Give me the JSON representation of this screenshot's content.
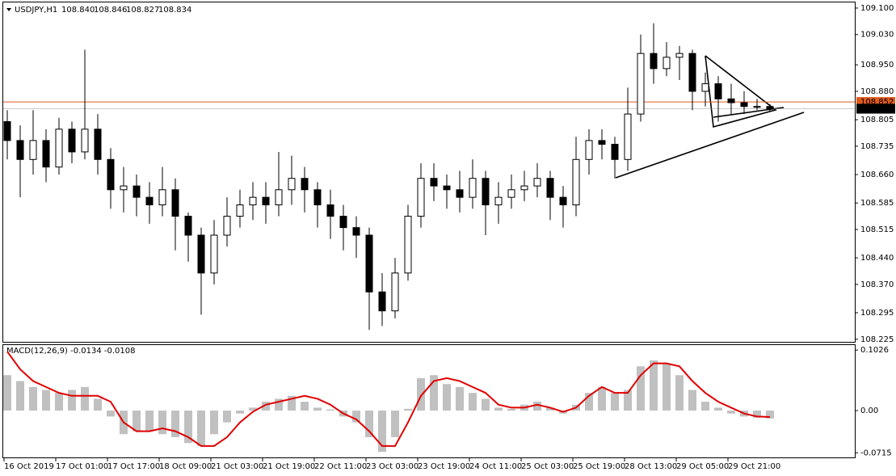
{
  "chart_data": {
    "type": "candlestick",
    "title": "USDJPY,H1",
    "header_values": [
      "108.840",
      "108.846",
      "108.827",
      "108.834"
    ],
    "categories": [
      "16 Oct 2019",
      null,
      null,
      null,
      "17 Oct 01:00",
      null,
      null,
      null,
      "17 Oct 17:00",
      null,
      null,
      null,
      "18 Oct 09:00",
      null,
      null,
      null,
      "21 Oct 03:00",
      null,
      null,
      null,
      "21 Oct 19:00",
      null,
      null,
      null,
      "22 Oct 11:00",
      null,
      null,
      null,
      "23 Oct 03:00",
      null,
      null,
      null,
      "23 Oct 19:00",
      null,
      null,
      null,
      "24 Oct 11:00",
      null,
      null,
      null,
      "25 Oct 03:00",
      null,
      null,
      null,
      "25 Oct 19:00",
      null,
      null,
      null,
      "28 Oct 13:00",
      null,
      null,
      null,
      "29 Oct 05:00",
      null,
      null,
      null,
      "29 Oct 21:00",
      null,
      null,
      null
    ],
    "open": [
      108.8,
      108.75,
      108.7,
      108.75,
      108.68,
      108.78,
      108.72,
      108.78,
      108.7,
      108.62,
      108.63,
      108.6,
      108.58,
      108.62,
      108.55,
      108.5,
      108.4,
      108.5,
      108.55,
      108.58,
      108.6,
      108.58,
      108.62,
      108.65,
      108.62,
      108.58,
      108.55,
      108.52,
      108.5,
      108.35,
      108.3,
      108.4,
      108.55,
      108.65,
      108.63,
      108.62,
      108.6,
      108.65,
      108.58,
      108.6,
      108.62,
      108.63,
      108.65,
      108.6,
      108.58,
      108.7,
      108.75,
      108.74,
      108.7,
      108.82,
      108.98,
      108.94,
      108.97,
      108.98,
      108.88,
      108.9,
      108.86,
      108.85,
      108.84,
      108.84
    ],
    "high": [
      108.83,
      108.79,
      108.83,
      108.78,
      108.81,
      108.8,
      108.99,
      108.82,
      108.73,
      108.68,
      108.66,
      108.64,
      108.68,
      108.65,
      108.56,
      108.52,
      108.54,
      108.6,
      108.62,
      108.64,
      108.64,
      108.72,
      108.71,
      108.68,
      108.64,
      108.62,
      108.58,
      108.55,
      108.52,
      108.4,
      108.44,
      108.58,
      108.69,
      108.69,
      108.66,
      108.67,
      108.7,
      108.67,
      108.64,
      108.66,
      108.67,
      108.69,
      108.67,
      108.63,
      108.76,
      108.78,
      108.78,
      108.76,
      108.89,
      109.03,
      109.06,
      109.01,
      109.0,
      108.99,
      108.93,
      108.92,
      108.9,
      108.88,
      108.86,
      108.846
    ],
    "low": [
      108.7,
      108.6,
      108.66,
      108.64,
      108.66,
      108.69,
      108.7,
      108.66,
      108.57,
      108.56,
      108.55,
      108.53,
      108.55,
      108.46,
      108.43,
      108.29,
      108.37,
      108.47,
      108.52,
      108.54,
      108.53,
      108.55,
      108.58,
      108.56,
      108.52,
      108.49,
      108.46,
      108.44,
      108.25,
      108.26,
      108.28,
      108.38,
      108.52,
      108.59,
      108.57,
      108.56,
      108.57,
      108.5,
      108.53,
      108.57,
      108.59,
      108.6,
      108.54,
      108.52,
      108.55,
      108.66,
      108.7,
      108.65,
      108.67,
      108.8,
      108.9,
      108.92,
      108.91,
      108.83,
      108.84,
      108.8,
      108.82,
      108.82,
      108.83,
      108.827
    ],
    "close": [
      108.75,
      108.7,
      108.75,
      108.68,
      108.78,
      108.72,
      108.78,
      108.7,
      108.62,
      108.63,
      108.6,
      108.58,
      108.62,
      108.55,
      108.5,
      108.4,
      108.5,
      108.55,
      108.58,
      108.6,
      108.58,
      108.62,
      108.65,
      108.62,
      108.58,
      108.55,
      108.52,
      108.5,
      108.35,
      108.3,
      108.4,
      108.55,
      108.65,
      108.63,
      108.62,
      108.6,
      108.65,
      108.58,
      108.6,
      108.62,
      108.63,
      108.65,
      108.6,
      108.58,
      108.7,
      108.75,
      108.74,
      108.7,
      108.82,
      108.98,
      108.94,
      108.97,
      108.98,
      108.88,
      108.9,
      108.86,
      108.85,
      108.84,
      108.84,
      108.834
    ],
    "ylim": [
      108.216,
      109.117
    ],
    "yticks": [
      {
        "value": 109.1,
        "label": "109.100"
      },
      {
        "value": 109.03,
        "label": "109.030"
      },
      {
        "value": 108.95,
        "label": "108.950"
      },
      {
        "value": 108.88,
        "label": "108.880"
      },
      {
        "value": 108.805,
        "label": "108.805"
      },
      {
        "value": 108.735,
        "label": "108.735"
      },
      {
        "value": 108.66,
        "label": "108.660"
      },
      {
        "value": 108.585,
        "label": "108.585"
      },
      {
        "value": 108.515,
        "label": "108.515"
      },
      {
        "value": 108.44,
        "label": "108.440"
      },
      {
        "value": 108.37,
        "label": "108.370"
      },
      {
        "value": 108.295,
        "label": "108.295"
      },
      {
        "value": 108.225,
        "label": "108.225"
      }
    ],
    "price_line": {
      "value": 108.852,
      "label": "108.852",
      "color": "#e05a1e"
    },
    "last_price": {
      "value": 108.834,
      "label": "108.834",
      "color": "#000000"
    },
    "macd": {
      "label": "MACD(12,26,9) -0.0134 -0.0108",
      "histogram_color": "#c0c0c0",
      "signal_color": "#e00000",
      "histogram": [
        0.06,
        0.05,
        0.04,
        0.035,
        0.03,
        0.035,
        0.04,
        0.02,
        -0.01,
        -0.04,
        -0.035,
        -0.035,
        -0.04,
        -0.045,
        -0.055,
        -0.06,
        -0.04,
        -0.02,
        -0.005,
        0.005,
        0.015,
        0.02,
        0.025,
        0.015,
        0.005,
        0.002,
        -0.01,
        -0.02,
        -0.045,
        -0.07,
        -0.045,
        0.003,
        0.055,
        0.06,
        0.045,
        0.04,
        0.03,
        0.02,
        0.005,
        0.003,
        0.01,
        0.015,
        0.005,
        -0.005,
        0.01,
        0.03,
        0.04,
        0.03,
        0.035,
        0.075,
        0.085,
        0.08,
        0.06,
        0.035,
        0.015,
        0.005,
        -0.005,
        -0.01,
        -0.012,
        -0.0134
      ],
      "signal": [
        0.1,
        0.07,
        0.05,
        0.04,
        0.03,
        0.025,
        0.025,
        0.025,
        0.015,
        -0.02,
        -0.035,
        -0.035,
        -0.03,
        -0.035,
        -0.045,
        -0.06,
        -0.06,
        -0.045,
        -0.02,
        -0.002,
        0.01,
        0.015,
        0.02,
        0.025,
        0.02,
        0.01,
        -0.005,
        -0.015,
        -0.035,
        -0.06,
        -0.06,
        -0.02,
        0.025,
        0.05,
        0.055,
        0.05,
        0.04,
        0.03,
        0.01,
        0.005,
        0.005,
        0.01,
        0.005,
        -0.002,
        0.005,
        0.025,
        0.04,
        0.03,
        0.03,
        0.06,
        0.08,
        0.08,
        0.075,
        0.05,
        0.03,
        0.015,
        0.005,
        -0.005,
        -0.01,
        -0.0108
      ],
      "ylim": [
        -0.0807,
        0.111
      ],
      "yticks": [
        0.1026,
        {
          "value": 0,
          "label": "0.00"
        },
        -0.0715
      ]
    }
  }
}
